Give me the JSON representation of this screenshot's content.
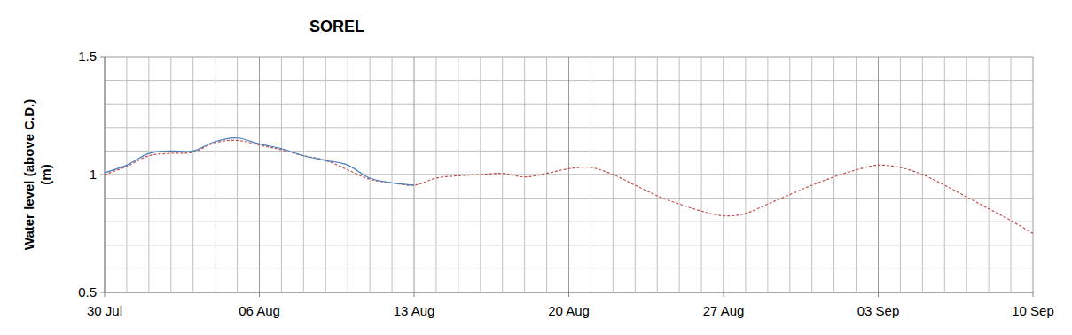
{
  "chart_data": {
    "type": "line",
    "title": "SOREL",
    "y_label": [
      "Water level (above C.D.)",
      "(m)"
    ],
    "categories": [
      "30 Jul",
      null,
      null,
      null,
      null,
      null,
      null,
      "06 Aug",
      null,
      null,
      null,
      null,
      null,
      null,
      "13 Aug",
      null,
      null,
      null,
      null,
      null,
      null,
      "20 Aug",
      null,
      null,
      null,
      null,
      null,
      null,
      "27 Aug",
      null,
      null,
      null,
      null,
      null,
      null,
      "03 Sep",
      null,
      null,
      null,
      null,
      null,
      null,
      "10 Sep"
    ],
    "series": [
      {
        "color": "#c0504d",
        "line_style": "dashed",
        "values": [
          1.0,
          1.035,
          1.08,
          1.09,
          1.095,
          1.135,
          1.145,
          1.125,
          1.105,
          1.08,
          1.06,
          1.02,
          0.98,
          0.965,
          0.955,
          0.985,
          0.995,
          1.0,
          1.005,
          0.99,
          1.005,
          1.025,
          1.03,
          1.0,
          0.955,
          0.91,
          0.875,
          0.845,
          0.825,
          0.835,
          0.875,
          0.915,
          0.955,
          0.99,
          1.02,
          1.04,
          1.03,
          1.0,
          0.955,
          0.905,
          0.855,
          0.805,
          0.75
        ]
      },
      {
        "color": "#4a7ebb",
        "line_style": "solid",
        "values": [
          1.008,
          1.04,
          1.09,
          1.1,
          1.1,
          1.14,
          1.155,
          1.13,
          1.11,
          1.08,
          1.06,
          1.04,
          0.985,
          0.965,
          0.955,
          null,
          null,
          null,
          null,
          null,
          null,
          null,
          null,
          null,
          null,
          null,
          null,
          null,
          null,
          null,
          null,
          null,
          null,
          null,
          null,
          null,
          null,
          null,
          null,
          null,
          null,
          null,
          null
        ]
      }
    ],
    "ylim": [
      0.5,
      1.5
    ],
    "yticks": [
      0.5,
      1,
      1.5
    ],
    "grid": true
  }
}
